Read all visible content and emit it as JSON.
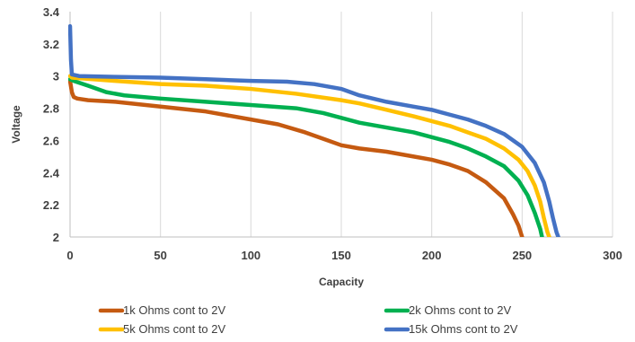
{
  "chart_data": {
    "type": "line",
    "title": "",
    "xlabel": "Capacity",
    "ylabel": "Voltage",
    "xlim": [
      0,
      300
    ],
    "ylim": [
      2,
      3.4
    ],
    "x_ticks": [
      0,
      50,
      100,
      150,
      200,
      250,
      300
    ],
    "y_ticks": [
      2,
      2.2,
      2.4,
      2.6,
      2.8,
      3,
      3.2,
      3.4
    ],
    "grid": "vertical",
    "legend_position": "bottom",
    "series": [
      {
        "name": "1k Ohms cont to 2V",
        "color": "#c55a11",
        "points": [
          [
            0,
            2.97
          ],
          [
            1,
            2.9
          ],
          [
            2,
            2.87
          ],
          [
            4,
            2.86
          ],
          [
            10,
            2.85
          ],
          [
            25,
            2.84
          ],
          [
            50,
            2.81
          ],
          [
            75,
            2.78
          ],
          [
            100,
            2.73
          ],
          [
            115,
            2.7
          ],
          [
            130,
            2.65
          ],
          [
            140,
            2.61
          ],
          [
            150,
            2.57
          ],
          [
            160,
            2.55
          ],
          [
            175,
            2.53
          ],
          [
            190,
            2.5
          ],
          [
            200,
            2.48
          ],
          [
            210,
            2.45
          ],
          [
            220,
            2.41
          ],
          [
            230,
            2.34
          ],
          [
            240,
            2.24
          ],
          [
            245,
            2.14
          ],
          [
            248,
            2.07
          ],
          [
            250,
            2.0
          ]
        ]
      },
      {
        "name": "2k Ohms cont to 2V",
        "color": "#00b050",
        "points": [
          [
            0,
            2.98
          ],
          [
            2,
            2.97
          ],
          [
            10,
            2.94
          ],
          [
            20,
            2.9
          ],
          [
            30,
            2.88
          ],
          [
            50,
            2.86
          ],
          [
            75,
            2.84
          ],
          [
            100,
            2.82
          ],
          [
            125,
            2.8
          ],
          [
            140,
            2.77
          ],
          [
            150,
            2.74
          ],
          [
            160,
            2.71
          ],
          [
            175,
            2.68
          ],
          [
            190,
            2.65
          ],
          [
            200,
            2.62
          ],
          [
            210,
            2.59
          ],
          [
            220,
            2.55
          ],
          [
            230,
            2.5
          ],
          [
            240,
            2.44
          ],
          [
            248,
            2.35
          ],
          [
            253,
            2.26
          ],
          [
            257,
            2.15
          ],
          [
            260,
            2.05
          ],
          [
            261,
            2.0
          ]
        ]
      },
      {
        "name": "5k Ohms cont to 2V",
        "color": "#ffc000",
        "points": [
          [
            0,
            3.0
          ],
          [
            1,
            2.99
          ],
          [
            25,
            2.97
          ],
          [
            50,
            2.95
          ],
          [
            75,
            2.94
          ],
          [
            100,
            2.92
          ],
          [
            125,
            2.89
          ],
          [
            150,
            2.85
          ],
          [
            160,
            2.83
          ],
          [
            175,
            2.79
          ],
          [
            190,
            2.75
          ],
          [
            200,
            2.72
          ],
          [
            210,
            2.69
          ],
          [
            220,
            2.65
          ],
          [
            230,
            2.61
          ],
          [
            240,
            2.55
          ],
          [
            248,
            2.48
          ],
          [
            253,
            2.41
          ],
          [
            257,
            2.32
          ],
          [
            260,
            2.22
          ],
          [
            262,
            2.12
          ],
          [
            264,
            2.03
          ],
          [
            265,
            2.0
          ]
        ]
      },
      {
        "name": "15k Ohms cont to 2V",
        "color": "#4472c4",
        "points": [
          [
            0,
            3.31
          ],
          [
            0.5,
            3.1
          ],
          [
            1,
            3.01
          ],
          [
            5,
            3.0
          ],
          [
            25,
            2.995
          ],
          [
            50,
            2.99
          ],
          [
            75,
            2.98
          ],
          [
            100,
            2.97
          ],
          [
            120,
            2.965
          ],
          [
            135,
            2.95
          ],
          [
            150,
            2.92
          ],
          [
            160,
            2.88
          ],
          [
            175,
            2.84
          ],
          [
            190,
            2.81
          ],
          [
            200,
            2.79
          ],
          [
            210,
            2.76
          ],
          [
            220,
            2.73
          ],
          [
            230,
            2.69
          ],
          [
            240,
            2.64
          ],
          [
            250,
            2.56
          ],
          [
            257,
            2.46
          ],
          [
            262,
            2.34
          ],
          [
            265,
            2.22
          ],
          [
            267,
            2.12
          ],
          [
            269,
            2.03
          ],
          [
            270,
            2.0
          ]
        ]
      }
    ]
  }
}
